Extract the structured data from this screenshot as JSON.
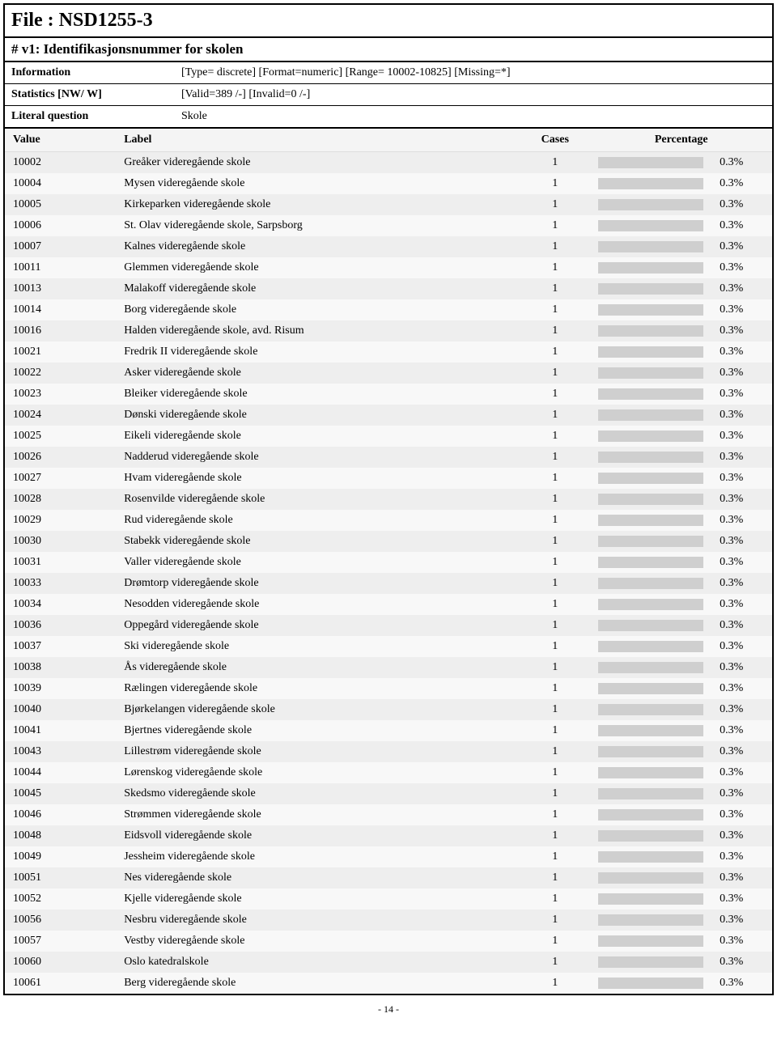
{
  "file_title": "File : NSD1255-3",
  "variable_header": "# v1: Identifikasjonsnummer for skolen",
  "meta": [
    {
      "label": "Information",
      "value": "[Type= discrete] [Format=numeric] [Range= 10002-10825] [Missing=*]"
    },
    {
      "label": "Statistics [NW/ W]",
      "value": "[Valid=389 /-] [Invalid=0 /-]"
    },
    {
      "label": "Literal question",
      "value": "Skole"
    }
  ],
  "headers": {
    "value": "Value",
    "label": "Label",
    "cases": "Cases",
    "percentage": "Percentage"
  },
  "bar_color": "#cfcfcf",
  "row_odd_bg": "#eeeeee",
  "row_even_bg": "#f8f8f8",
  "rows": [
    {
      "value": "10002",
      "label": "Greåker videregående skole",
      "cases": "1",
      "pct": "0.3%"
    },
    {
      "value": "10004",
      "label": "Mysen videregående skole",
      "cases": "1",
      "pct": "0.3%"
    },
    {
      "value": "10005",
      "label": "Kirkeparken videregående skole",
      "cases": "1",
      "pct": "0.3%"
    },
    {
      "value": "10006",
      "label": "St. Olav videregående skole, Sarpsborg",
      "cases": "1",
      "pct": "0.3%"
    },
    {
      "value": "10007",
      "label": "Kalnes videregående skole",
      "cases": "1",
      "pct": "0.3%"
    },
    {
      "value": "10011",
      "label": "Glemmen videregående skole",
      "cases": "1",
      "pct": "0.3%"
    },
    {
      "value": "10013",
      "label": "Malakoff videregående skole",
      "cases": "1",
      "pct": "0.3%"
    },
    {
      "value": "10014",
      "label": "Borg videregående skole",
      "cases": "1",
      "pct": "0.3%"
    },
    {
      "value": "10016",
      "label": "Halden videregående skole, avd. Risum",
      "cases": "1",
      "pct": "0.3%"
    },
    {
      "value": "10021",
      "label": "Fredrik II videregående skole",
      "cases": "1",
      "pct": "0.3%"
    },
    {
      "value": "10022",
      "label": "Asker videregående skole",
      "cases": "1",
      "pct": "0.3%"
    },
    {
      "value": "10023",
      "label": "Bleiker videregående skole",
      "cases": "1",
      "pct": "0.3%"
    },
    {
      "value": "10024",
      "label": "Dønski videregående skole",
      "cases": "1",
      "pct": "0.3%"
    },
    {
      "value": "10025",
      "label": "Eikeli videregående skole",
      "cases": "1",
      "pct": "0.3%"
    },
    {
      "value": "10026",
      "label": "Nadderud videregående skole",
      "cases": "1",
      "pct": "0.3%"
    },
    {
      "value": "10027",
      "label": "Hvam videregående skole",
      "cases": "1",
      "pct": "0.3%"
    },
    {
      "value": "10028",
      "label": "Rosenvilde videregående skole",
      "cases": "1",
      "pct": "0.3%"
    },
    {
      "value": "10029",
      "label": "Rud videregående skole",
      "cases": "1",
      "pct": "0.3%"
    },
    {
      "value": "10030",
      "label": "Stabekk videregående skole",
      "cases": "1",
      "pct": "0.3%"
    },
    {
      "value": "10031",
      "label": "Valler videregående skole",
      "cases": "1",
      "pct": "0.3%"
    },
    {
      "value": "10033",
      "label": "Drømtorp videregående skole",
      "cases": "1",
      "pct": "0.3%"
    },
    {
      "value": "10034",
      "label": "Nesodden videregående skole",
      "cases": "1",
      "pct": "0.3%"
    },
    {
      "value": "10036",
      "label": "Oppegård videregående skole",
      "cases": "1",
      "pct": "0.3%"
    },
    {
      "value": "10037",
      "label": "Ski videregående skole",
      "cases": "1",
      "pct": "0.3%"
    },
    {
      "value": "10038",
      "label": "Ås videregående skole",
      "cases": "1",
      "pct": "0.3%"
    },
    {
      "value": "10039",
      "label": "Rælingen videregående skole",
      "cases": "1",
      "pct": "0.3%"
    },
    {
      "value": "10040",
      "label": "Bjørkelangen videregående skole",
      "cases": "1",
      "pct": "0.3%"
    },
    {
      "value": "10041",
      "label": "Bjertnes videregående skole",
      "cases": "1",
      "pct": "0.3%"
    },
    {
      "value": "10043",
      "label": "Lillestrøm videregående skole",
      "cases": "1",
      "pct": "0.3%"
    },
    {
      "value": "10044",
      "label": "Lørenskog videregående skole",
      "cases": "1",
      "pct": "0.3%"
    },
    {
      "value": "10045",
      "label": "Skedsmo videregående skole",
      "cases": "1",
      "pct": "0.3%"
    },
    {
      "value": "10046",
      "label": "Strømmen videregående skole",
      "cases": "1",
      "pct": "0.3%"
    },
    {
      "value": "10048",
      "label": "Eidsvoll videregående skole",
      "cases": "1",
      "pct": "0.3%"
    },
    {
      "value": "10049",
      "label": "Jessheim videregående skole",
      "cases": "1",
      "pct": "0.3%"
    },
    {
      "value": "10051",
      "label": "Nes videregående skole",
      "cases": "1",
      "pct": "0.3%"
    },
    {
      "value": "10052",
      "label": "Kjelle videregående skole",
      "cases": "1",
      "pct": "0.3%"
    },
    {
      "value": "10056",
      "label": "Nesbru videregående skole",
      "cases": "1",
      "pct": "0.3%"
    },
    {
      "value": "10057",
      "label": "Vestby videregående skole",
      "cases": "1",
      "pct": "0.3%"
    },
    {
      "value": "10060",
      "label": "Oslo katedralskole",
      "cases": "1",
      "pct": "0.3%"
    },
    {
      "value": "10061",
      "label": "Berg videregående skole",
      "cases": "1",
      "pct": "0.3%"
    }
  ],
  "page_number": "- 14 -"
}
